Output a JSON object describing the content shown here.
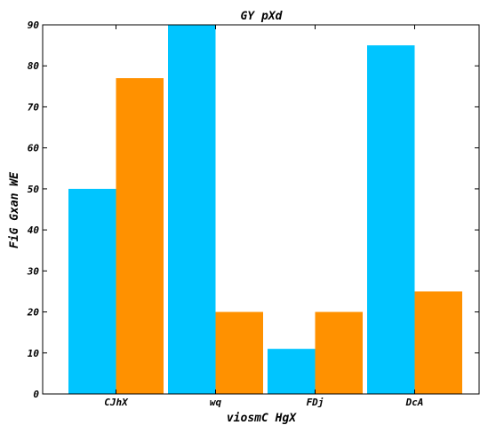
{
  "chart_data": {
    "type": "bar",
    "title": "GY pXd",
    "xlabel": "viosmC HgX",
    "ylabel": "FiG Gxan WE",
    "categories": [
      "CJhX",
      "wq",
      "FDj",
      "DcA"
    ],
    "series": [
      {
        "values": [
          50,
          90,
          11,
          85
        ]
      },
      {
        "values": [
          77,
          20,
          20,
          25
        ]
      }
    ],
    "ylim": [
      0,
      90
    ],
    "yticks": [
      0,
      10,
      20,
      30,
      40,
      50,
      60,
      70,
      80,
      90
    ],
    "colors": [
      "#00c5ff",
      "#ff9100"
    ],
    "grid": false,
    "legend": "none"
  }
}
